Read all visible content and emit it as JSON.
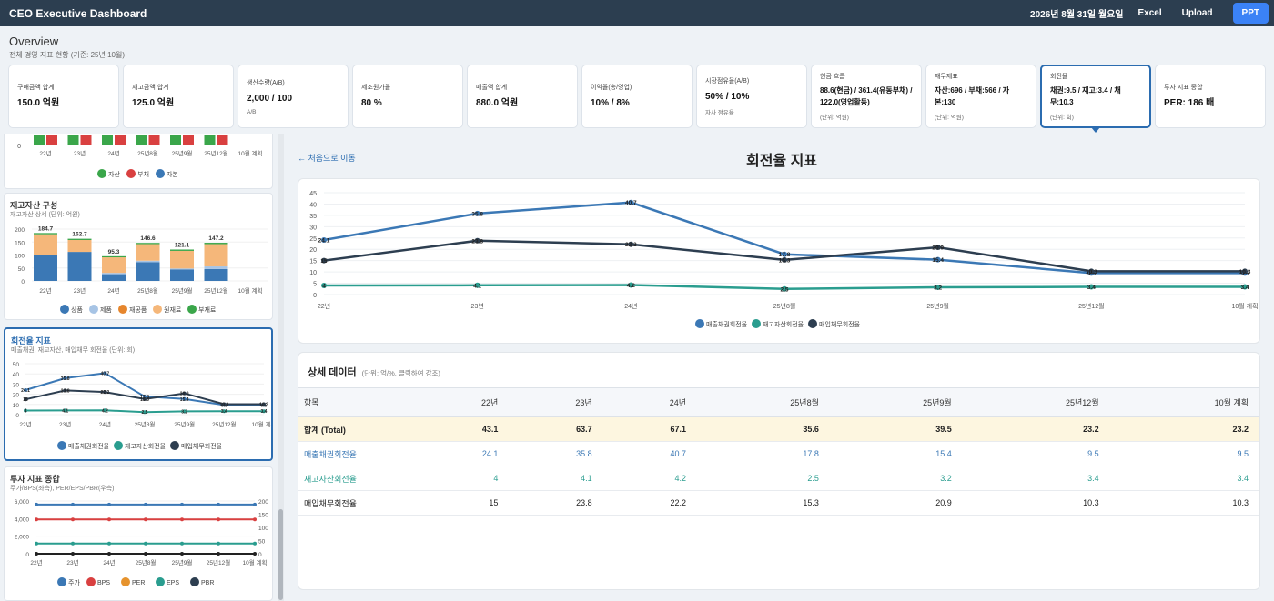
{
  "header": {
    "title": "CEO Executive Dashboard",
    "date": "2026년 8월 31일 월요일",
    "excel": "Excel",
    "upload": "Upload",
    "ppt": "PPT"
  },
  "overview": {
    "title": "Overview",
    "subtitle": "전체 경영 지표 현황 (기준: 25년 10월)"
  },
  "kpis": [
    {
      "label": "구매금액 합계",
      "value": "150.0 억원",
      "note": ""
    },
    {
      "label": "재고금액 합계",
      "value": "125.0 억원",
      "note": ""
    },
    {
      "label": "생산수량(A/B)",
      "value": "2,000 / 100",
      "note": "A/B"
    },
    {
      "label": "제조원가율",
      "value": "80 %",
      "note": ""
    },
    {
      "label": "매출액 합계",
      "value": "880.0 억원",
      "note": ""
    },
    {
      "label": "이익율(총/영업)",
      "value": "10% / 8%",
      "note": ""
    },
    {
      "label": "시장점유율(A/B)",
      "value": "50% / 10%",
      "note": "자사 점유율"
    },
    {
      "label": "현금 흐름",
      "value": "88.6(현금) / 361.4(유동부채) / 122.0(영업활동)",
      "note": "(단위: 억원)"
    },
    {
      "label": "재무제표",
      "value": "자산:696 / 부채:566 / 자본:130",
      "note": "(단위: 억원)"
    },
    {
      "label": "회전율",
      "value": "채권:9.5 / 재고:3.4 / 채무:10.3",
      "note": "(단위: 회)"
    },
    {
      "label": "투자 지표 종합",
      "value": "PER: 186 배",
      "note": ""
    }
  ],
  "sidebar": {
    "balance_card": {
      "x_labels": [
        "22년",
        "23년",
        "24년",
        "25년8월",
        "25년9월",
        "25년12월",
        "10월 계획"
      ],
      "legend": [
        "자산",
        "부채",
        "자본"
      ],
      "y_zero": "0",
      "colors": {
        "asset": "#3aa64a",
        "debt": "#d94040",
        "equity": "#3b78b5"
      }
    },
    "inventory_card": {
      "title": "재고자산 구성",
      "subtitle": "재고자산 상세 (단위: 억원)",
      "y_ticks": [
        "200",
        "150",
        "100",
        "50",
        "0"
      ],
      "x_labels": [
        "22년",
        "23년",
        "24년",
        "25년8월",
        "25년9월",
        "25년12월",
        "10월 계획"
      ],
      "totals": [
        "184.7",
        "162.7",
        "95.3",
        "146.6",
        "121.1",
        "147.2",
        ""
      ],
      "legend": [
        "상품",
        "제품",
        "재공품",
        "원재료",
        "부재료"
      ]
    },
    "turnover_card": {
      "title": "회전율 지표",
      "subtitle": "매출채권, 재고자산, 매입채무 회전율 (단위: 회)",
      "y_ticks": [
        "50",
        "40",
        "30",
        "20",
        "10",
        "0"
      ],
      "x_labels": [
        "22년",
        "23년",
        "24년",
        "25년8월",
        "25년9월",
        "25년12월",
        "10월 계획"
      ],
      "legend": [
        "매출채권회전율",
        "재고자산회전율",
        "매입채무회전율"
      ]
    },
    "invest_card": {
      "title": "투자 지표 종합",
      "subtitle": "주가/BPS(좌측), PER/EPS/PBR(우측)",
      "y_left": [
        "6,000",
        "4,000",
        "2,000",
        "0"
      ],
      "y_right": [
        "200",
        "150",
        "100",
        "50",
        "0"
      ],
      "x_labels": [
        "22년",
        "23년",
        "24년",
        "25년8월",
        "25년9월",
        "25년12월",
        "10월 계획"
      ],
      "legend": [
        "주가",
        "BPS",
        "PER",
        "EPS",
        "PBR"
      ]
    }
  },
  "main": {
    "back_link": "← 처음으로 이동",
    "title": "회전율 지표",
    "detail_title": "상세 데이터",
    "detail_note": "(단위: 억/%, 클릭하여 강조)"
  },
  "chart_data": {
    "type": "line",
    "title": "회전율 지표",
    "x": [
      "22년",
      "23년",
      "24년",
      "25년8월",
      "25년9월",
      "25년12월",
      "10월 계획"
    ],
    "ylim": [
      0,
      45
    ],
    "y_ticks": [
      0,
      5,
      10,
      15,
      20,
      25,
      30,
      35,
      40,
      45
    ],
    "legend_position": "bottom",
    "series": [
      {
        "name": "매출채권회전율",
        "color": "#3b78b5",
        "values": [
          24.1,
          35.8,
          40.7,
          17.8,
          15.4,
          9.5,
          9.5
        ]
      },
      {
        "name": "재고자산회전율",
        "color": "#2a9d8f",
        "values": [
          4,
          4.1,
          4.2,
          2.5,
          3.2,
          3.4,
          3.4
        ]
      },
      {
        "name": "매입채무회전율",
        "color": "#2d3e50",
        "values": [
          15,
          23.8,
          22.2,
          15.3,
          20.9,
          10.3,
          10.3
        ]
      }
    ]
  },
  "table": {
    "headers": [
      "항목",
      "22년",
      "23년",
      "24년",
      "25년8월",
      "25년9월",
      "25년12월",
      "10월 계획"
    ],
    "rows": [
      {
        "label": "합계 (Total)",
        "values": [
          "43.1",
          "63.7",
          "67.1",
          "35.6",
          "39.5",
          "23.2",
          "23.2"
        ]
      },
      {
        "label": "매출채권회전율",
        "values": [
          "24.1",
          "35.8",
          "40.7",
          "17.8",
          "15.4",
          "9.5",
          "9.5"
        ]
      },
      {
        "label": "재고자산회전율",
        "values": [
          "4",
          "4.1",
          "4.2",
          "2.5",
          "3.2",
          "3.4",
          "3.4"
        ]
      },
      {
        "label": "매입채무회전율",
        "values": [
          "15",
          "23.8",
          "22.2",
          "15.3",
          "20.9",
          "10.3",
          "10.3"
        ]
      }
    ]
  }
}
